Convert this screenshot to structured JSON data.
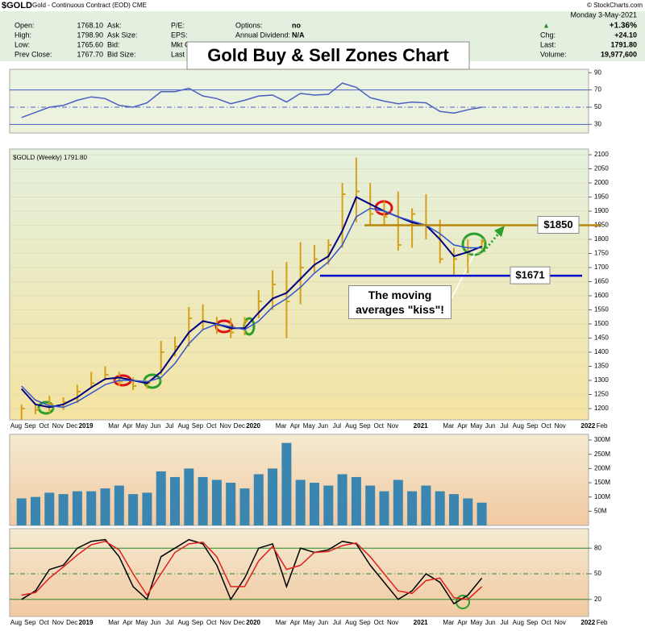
{
  "header": {
    "symbol": "$GOLD",
    "description": "Gold - Continuous Contract (EOD) CME",
    "source": "© StockCharts.com",
    "date": "Monday  3-May-2021",
    "arrow": "▲",
    "change_pct": "+1.36%",
    "quote": [
      [
        "Open:",
        "1768.10"
      ],
      [
        "High:",
        "1798.90"
      ],
      [
        "Low:",
        "1765.60"
      ],
      [
        "Prev Close:",
        "1767.70"
      ]
    ],
    "col2": [
      "Ask:",
      "Ask Size:",
      "Bid:",
      "Bid Size:"
    ],
    "col3": [
      "P/E:",
      "EPS:",
      "Mkt C",
      "Last"
    ],
    "col4": [
      [
        "Options:",
        "no"
      ],
      [
        "Annual Dividend:",
        "N/A"
      ]
    ],
    "right": [
      [
        "Chg:",
        "+24.10"
      ],
      [
        "Last:",
        "1791.80"
      ],
      [
        "Volume:",
        "19,977,600"
      ]
    ],
    "title": "Gold Buy & Sell Zones Chart"
  },
  "chart_data": [
    {
      "type": "line",
      "series": [
        {
          "color": "#4a5fc1",
          "values": [
            38,
            44,
            50,
            52,
            58,
            62,
            60,
            52,
            50,
            55,
            68,
            68,
            72,
            63,
            60,
            54,
            58,
            63,
            64,
            56,
            66,
            64,
            65,
            78,
            73,
            61,
            57,
            54,
            56,
            55,
            45,
            43,
            47,
            50,
            null,
            null,
            null,
            null,
            null,
            null,
            null,
            null,
            null
          ]
        }
      ],
      "ylim": [
        20,
        94
      ],
      "yticks": [
        30,
        50,
        70,
        90
      ],
      "reference_lines": [
        30,
        50,
        70
      ],
      "line_color": "#4a5fc1"
    },
    {
      "type": "ohlc",
      "label": "$GOLD (Weekly) 1791.80",
      "categories": [
        "Aug",
        "Sep",
        "Oct",
        "Nov",
        "Dec",
        "2019",
        null,
        "Mar",
        "Apr",
        "May",
        "Jun",
        "Jul",
        "Aug",
        "Sep",
        "Oct",
        "Nov",
        "Dec",
        "2020",
        null,
        "Mar",
        "Apr",
        "May",
        "Jun",
        "Jul",
        "Aug",
        "Sep",
        "Oct",
        "Nov",
        null,
        "2021",
        null,
        "Mar",
        "Apr",
        "May",
        "Jun",
        "Jul",
        "Aug",
        "Sep",
        "Oct",
        "Nov",
        null,
        "2022",
        "Feb"
      ],
      "high": [
        1215,
        1215,
        1245,
        1240,
        1285,
        1330,
        1350,
        1330,
        1310,
        1300,
        1440,
        1455,
        1560,
        1570,
        1525,
        1520,
        1525,
        1620,
        1690,
        1720,
        1790,
        1780,
        1800,
        2000,
        2090,
        2000,
        1935,
        1970,
        1910,
        1960,
        1870,
        1770,
        1800,
        1800,
        null,
        null,
        null,
        null,
        null,
        null,
        null,
        null,
        null
      ],
      "low": [
        1160,
        1180,
        1185,
        1195,
        1220,
        1275,
        1300,
        1280,
        1265,
        1270,
        1320,
        1385,
        1420,
        1480,
        1465,
        1450,
        1460,
        1520,
        1550,
        1450,
        1570,
        1680,
        1710,
        1770,
        1860,
        1850,
        1850,
        1760,
        1770,
        1800,
        1715,
        1675,
        1680,
        1765,
        null,
        null,
        null,
        null,
        null,
        null,
        null,
        null,
        null
      ],
      "close": [
        1200,
        1195,
        1215,
        1222,
        1260,
        1290,
        1320,
        1295,
        1280,
        1290,
        1400,
        1420,
        1520,
        1510,
        1495,
        1470,
        1510,
        1580,
        1640,
        1580,
        1700,
        1730,
        1780,
        1960,
        1970,
        1890,
        1880,
        1780,
        1890,
        1850,
        1730,
        1730,
        1770,
        1792,
        null,
        null,
        null,
        null,
        null,
        null,
        null,
        null,
        null
      ],
      "color": "#d4a017",
      "series": [
        {
          "color": "#000080",
          "values": [
            1270,
            1215,
            1205,
            1215,
            1240,
            1275,
            1305,
            1310,
            1300,
            1290,
            1330,
            1400,
            1470,
            1510,
            1500,
            1485,
            1485,
            1540,
            1590,
            1610,
            1660,
            1710,
            1740,
            1830,
            1950,
            1925,
            1900,
            1880,
            1860,
            1850,
            1800,
            1740,
            1755,
            1775,
            null,
            null,
            null,
            null,
            null,
            null,
            null,
            null,
            null
          ]
        },
        {
          "color": "#3355cc",
          "values": [
            1280,
            1230,
            1210,
            1205,
            1225,
            1255,
            1285,
            1300,
            1300,
            1295,
            1310,
            1360,
            1430,
            1480,
            1500,
            1490,
            1480,
            1510,
            1560,
            1590,
            1630,
            1680,
            1720,
            1780,
            1880,
            1910,
            1900,
            1880,
            1865,
            1850,
            1820,
            1780,
            1770,
            1770,
            null,
            null,
            null,
            null,
            null,
            null,
            null,
            null,
            null
          ]
        }
      ],
      "ylim": [
        1160,
        2120
      ],
      "yticks": [
        1200,
        1250,
        1300,
        1350,
        1400,
        1450,
        1500,
        1550,
        1600,
        1650,
        1700,
        1750,
        1800,
        1850,
        1900,
        1950,
        2000,
        2050,
        2100
      ],
      "grid": true,
      "annotations": [
        {
          "value": 1850,
          "label": "$1850",
          "color": "#b8860b"
        },
        {
          "value": 1671,
          "label": "$1671",
          "color": "#0000cc"
        }
      ],
      "callout": "The moving averages \"kiss\"!"
    },
    {
      "type": "bar",
      "color": "#3a86b0",
      "values": [
        95000000,
        100000000,
        115000000,
        110000000,
        120000000,
        120000000,
        130000000,
        140000000,
        110000000,
        115000000,
        190000000,
        170000000,
        200000000,
        170000000,
        160000000,
        150000000,
        130000000,
        180000000,
        200000000,
        290000000,
        160000000,
        150000000,
        140000000,
        180000000,
        170000000,
        140000000,
        120000000,
        160000000,
        120000000,
        140000000,
        120000000,
        110000000,
        95000000,
        80000000,
        null,
        null,
        null,
        null,
        null,
        null,
        null,
        null,
        null
      ],
      "ylim": [
        0,
        320000000
      ],
      "yticks": [
        {
          "value": 50000000,
          "label": "50M"
        },
        {
          "value": 100000000,
          "label": "100M"
        },
        {
          "value": 150000000,
          "label": "150M"
        },
        {
          "value": 200000000,
          "label": "200M"
        },
        {
          "value": 250000000,
          "label": "250M"
        },
        {
          "value": 300000000,
          "label": "300M"
        }
      ]
    },
    {
      "type": "line",
      "categories": [
        "Aug",
        "Sep",
        "Oct",
        "Nov",
        "Dec",
        "2019",
        null,
        "Mar",
        "Apr",
        "May",
        "Jun",
        "Jul",
        "Aug",
        "Sep",
        "Oct",
        "Nov",
        "Dec",
        "2020",
        null,
        "Mar",
        "Apr",
        "May",
        "Jun",
        "Jul",
        "Aug",
        "Sep",
        "Oct",
        "Nov",
        null,
        "2021",
        null,
        "Mar",
        "Apr",
        "May",
        "Jun",
        "Jul",
        "Aug",
        "Sep",
        "Oct",
        "Nov",
        null,
        "2022",
        "Feb"
      ],
      "series": [
        {
          "color": "#000000",
          "values": [
            20,
            30,
            55,
            60,
            80,
            88,
            90,
            70,
            35,
            20,
            70,
            80,
            90,
            85,
            60,
            20,
            45,
            80,
            85,
            35,
            80,
            75,
            78,
            88,
            85,
            60,
            40,
            20,
            30,
            50,
            40,
            15,
            25,
            45,
            null,
            null,
            null,
            null,
            null,
            null,
            null,
            null,
            null
          ]
        },
        {
          "color": "#e02020",
          "values": [
            25,
            28,
            45,
            58,
            72,
            84,
            88,
            78,
            50,
            25,
            50,
            75,
            85,
            87,
            70,
            35,
            35,
            65,
            82,
            55,
            60,
            75,
            76,
            83,
            86,
            70,
            50,
            30,
            27,
            42,
            45,
            22,
            20,
            35,
            null,
            null,
            null,
            null,
            null,
            null,
            null,
            null,
            null
          ]
        }
      ],
      "ylim": [
        0,
        100
      ],
      "yticks": [
        20,
        50,
        80
      ],
      "reference_lines": [
        20,
        50,
        80
      ],
      "line_color": "#2a8a2a"
    }
  ]
}
